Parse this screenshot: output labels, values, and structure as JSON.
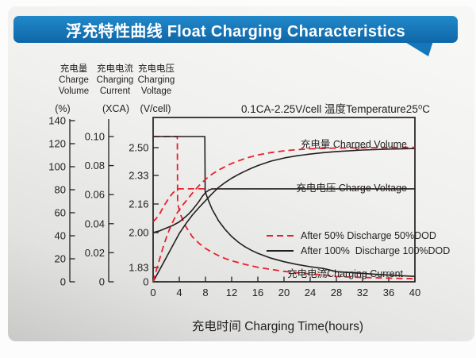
{
  "header": {
    "title": "浮充特性曲线 Float Charging Characteristics",
    "banner_color_top": "#2189ca",
    "banner_color_bottom": "#0f67a8",
    "banner_color": "#1477bb"
  },
  "colors": {
    "red": "#e8202c",
    "black": "#231f20"
  },
  "chart_data": {
    "type": "line",
    "condition": "0.1CA-2.25V/cell   温度Temperature25⁰C",
    "xlabel": "充电时间 Charging Time(hours)",
    "x_range": [
      0,
      40
    ],
    "grid": false,
    "legend_position": "inside-right-middle",
    "axes": {
      "volume": {
        "zh": "充电量",
        "en": "Charge Volume",
        "unit": "(%)",
        "range": [
          0,
          140
        ],
        "ticks": [
          "140",
          "120",
          "100",
          "80",
          "60",
          "40",
          "20",
          "0"
        ]
      },
      "current": {
        "zh": "充电电流",
        "en": "Charging Current",
        "unit": "(XCA)",
        "range": [
          0,
          0.1
        ],
        "ticks": [
          "0.10",
          "0.08",
          "0.06",
          "0.04",
          "0.02",
          "0"
        ]
      },
      "voltage": {
        "zh": "充电电压",
        "en": "Charging Voltage",
        "unit": "(V/cell)",
        "range": [
          0,
          2.5
        ],
        "ticks": [
          "2.50",
          "2.33",
          "2.16",
          "2.00",
          "1.83",
          "0"
        ]
      },
      "time": {
        "ticks": [
          "0",
          "4",
          "8",
          "12",
          "16",
          "20",
          "24",
          "28",
          "32",
          "36",
          "40"
        ]
      }
    },
    "annotations": [
      {
        "id": "charged-volume-label",
        "text": "充电量 Charged Volume"
      },
      {
        "id": "charge-voltage-label",
        "text": "充电电压 Charge Voltage"
      },
      {
        "id": "charging-current-label",
        "text": "充电电流Charging Current"
      }
    ],
    "legend": [
      {
        "label": "After 50% Discharge 50%DOD",
        "style": "dashed-red"
      },
      {
        "label": "After 100%  Discharge 100%DOD",
        "style": "solid-black"
      }
    ],
    "series": [
      {
        "id": "charging-current-50dod",
        "name": "Charging Current (after 50% discharge)",
        "axis": "current",
        "color": "#e8202c",
        "dashed": true,
        "width": 1.8,
        "points": [
          [
            0,
            0.1
          ],
          [
            3.7,
            0.1
          ],
          [
            3.75,
            0.054
          ],
          [
            4.2,
            0.046
          ],
          [
            5,
            0.038
          ],
          [
            6,
            0.031
          ],
          [
            7,
            0.0265
          ],
          [
            8,
            0.023
          ],
          [
            9,
            0.0203
          ],
          [
            10,
            0.018
          ],
          [
            11,
            0.016
          ],
          [
            12,
            0.0145
          ],
          [
            14,
            0.012
          ],
          [
            16,
            0.01
          ],
          [
            18,
            0.0085
          ],
          [
            20,
            0.0072
          ],
          [
            22,
            0.0062
          ],
          [
            24,
            0.0054
          ],
          [
            26,
            0.0048
          ],
          [
            28,
            0.0036
          ],
          [
            32,
            0.003
          ],
          [
            36,
            0.0025
          ],
          [
            40,
            0.0021
          ]
        ]
      },
      {
        "id": "charge-voltage-50dod",
        "name": "Charge Voltage (after 50% discharge)",
        "axis": "voltage",
        "color": "#e8202c",
        "dashed": true,
        "width": 1.8,
        "points": [
          [
            0,
            2.06
          ],
          [
            0.5,
            2.08
          ],
          [
            1,
            2.105
          ],
          [
            1.5,
            2.14
          ],
          [
            2,
            2.17
          ],
          [
            2.5,
            2.2
          ],
          [
            3,
            2.225
          ],
          [
            3.5,
            2.243
          ],
          [
            3.8,
            2.25
          ],
          [
            8.5,
            2.25
          ]
        ]
      },
      {
        "id": "charging-current-100dod",
        "name": "Charging Current (after 100% discharge)",
        "axis": "current",
        "color": "#231f20",
        "dashed": false,
        "width": 1.6,
        "points": [
          [
            0,
            0.1
          ],
          [
            7.9,
            0.1
          ],
          [
            7.95,
            0.062
          ],
          [
            8.5,
            0.0555
          ],
          [
            9,
            0.05
          ],
          [
            10,
            0.042
          ],
          [
            11,
            0.036
          ],
          [
            12,
            0.0312
          ],
          [
            13,
            0.0273
          ],
          [
            14,
            0.0242
          ],
          [
            15,
            0.0217
          ],
          [
            16,
            0.0196
          ],
          [
            18,
            0.0163
          ],
          [
            20,
            0.0138
          ],
          [
            22,
            0.0119
          ],
          [
            24,
            0.0104
          ],
          [
            26,
            0.0092
          ],
          [
            28,
            0.007
          ],
          [
            32,
            0.0058
          ],
          [
            36,
            0.0046
          ],
          [
            40,
            0.0037
          ]
        ]
      },
      {
        "id": "charge-voltage-100dod",
        "name": "Charge Voltage (after 100% discharge)",
        "axis": "voltage",
        "color": "#231f20",
        "dashed": false,
        "width": 1.6,
        "points": [
          [
            0,
            2.0
          ],
          [
            1,
            2.01
          ],
          [
            2,
            2.025
          ],
          [
            3,
            2.04
          ],
          [
            4,
            2.06
          ],
          [
            5,
            2.09
          ],
          [
            5.5,
            2.107
          ],
          [
            6,
            2.127
          ],
          [
            6.5,
            2.15
          ],
          [
            7,
            2.175
          ],
          [
            7.5,
            2.205
          ],
          [
            8,
            2.228
          ],
          [
            8.5,
            2.242
          ],
          [
            9,
            2.25
          ],
          [
            40,
            2.25
          ]
        ]
      },
      {
        "id": "charged-volume-100dod",
        "name": "Charged Volume (after 100% discharge)",
        "axis": "volume",
        "color": "#231f20",
        "dashed": false,
        "width": 1.6,
        "points": [
          [
            0,
            0
          ],
          [
            1,
            10.5
          ],
          [
            2,
            21
          ],
          [
            3,
            31.5
          ],
          [
            4,
            42
          ],
          [
            5,
            50.5
          ],
          [
            6,
            58
          ],
          [
            7,
            64.5
          ],
          [
            8,
            70.5
          ],
          [
            9,
            76.5
          ],
          [
            10,
            82
          ],
          [
            11,
            86.3
          ],
          [
            12,
            90
          ],
          [
            13,
            93.2
          ],
          [
            14,
            96
          ],
          [
            15,
            98.6
          ],
          [
            16,
            101
          ],
          [
            17,
            103
          ],
          [
            18,
            104.8
          ],
          [
            20,
            107.5
          ],
          [
            22,
            109.5
          ],
          [
            24,
            111
          ],
          [
            26,
            112.2
          ],
          [
            28,
            113.2
          ],
          [
            32,
            114.5
          ],
          [
            36,
            115.3
          ],
          [
            40,
            115.8
          ]
        ]
      },
      {
        "id": "charged-volume-50dod",
        "name": "Charged Volume (after 50% discharge)",
        "axis": "volume",
        "color": "#e8202c",
        "dashed": true,
        "width": 1.8,
        "points": [
          [
            0,
            0
          ],
          [
            0.5,
            10
          ],
          [
            1,
            20
          ],
          [
            1.5,
            29.5
          ],
          [
            2,
            38
          ],
          [
            2.5,
            45.5
          ],
          [
            3,
            52
          ],
          [
            3.7,
            60
          ],
          [
            4.5,
            66.5
          ],
          [
            5,
            70
          ],
          [
            6,
            77
          ],
          [
            7,
            83.5
          ],
          [
            8,
            89
          ],
          [
            9,
            93.5
          ],
          [
            10,
            97
          ],
          [
            11,
            100
          ],
          [
            12,
            102.8
          ],
          [
            13,
            105
          ],
          [
            14,
            107
          ],
          [
            15,
            108.7
          ],
          [
            16,
            110.2
          ],
          [
            18,
            112.3
          ],
          [
            20,
            113.8
          ],
          [
            22,
            114.8
          ],
          [
            24,
            115.5
          ],
          [
            28,
            116.2
          ],
          [
            32,
            116.5
          ],
          [
            36,
            116.7
          ],
          [
            40,
            116.8
          ]
        ]
      }
    ]
  }
}
